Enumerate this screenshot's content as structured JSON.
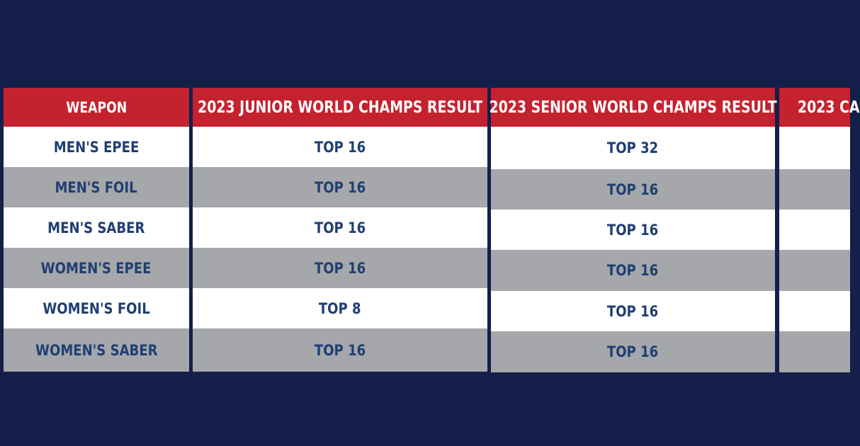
{
  "colors": {
    "background": "#141f4a",
    "header": "#c4222f",
    "header_text": "#ffffff",
    "cell_text": "#1f3f73",
    "row_white": "#ffffff",
    "row_gray": "#a5a7aa"
  },
  "table": {
    "columns": [
      {
        "header": "WEAPON",
        "cells": [
          "MEN'S EPEE",
          "MEN'S FOIL",
          "MEN'S SABER",
          "WOMEN'S EPEE",
          "WOMEN'S FOIL",
          "WOMEN'S SABER"
        ]
      },
      {
        "header": "2023 JUNIOR WORLD CHAMPS RESULT",
        "cells": [
          "TOP 16",
          "TOP 16",
          "TOP 16",
          "TOP 16",
          "TOP 8",
          "TOP 16"
        ]
      },
      {
        "header": "2023 SENIOR WORLD CHAMPS RESULT",
        "cells": [
          "TOP 32",
          "TOP 16",
          "TOP 16",
          "TOP 16",
          "TOP 16",
          "TOP 16"
        ]
      },
      {
        "header": "2023 CA",
        "cells": [
          "",
          "",
          "",
          "",
          "",
          ""
        ]
      }
    ]
  }
}
